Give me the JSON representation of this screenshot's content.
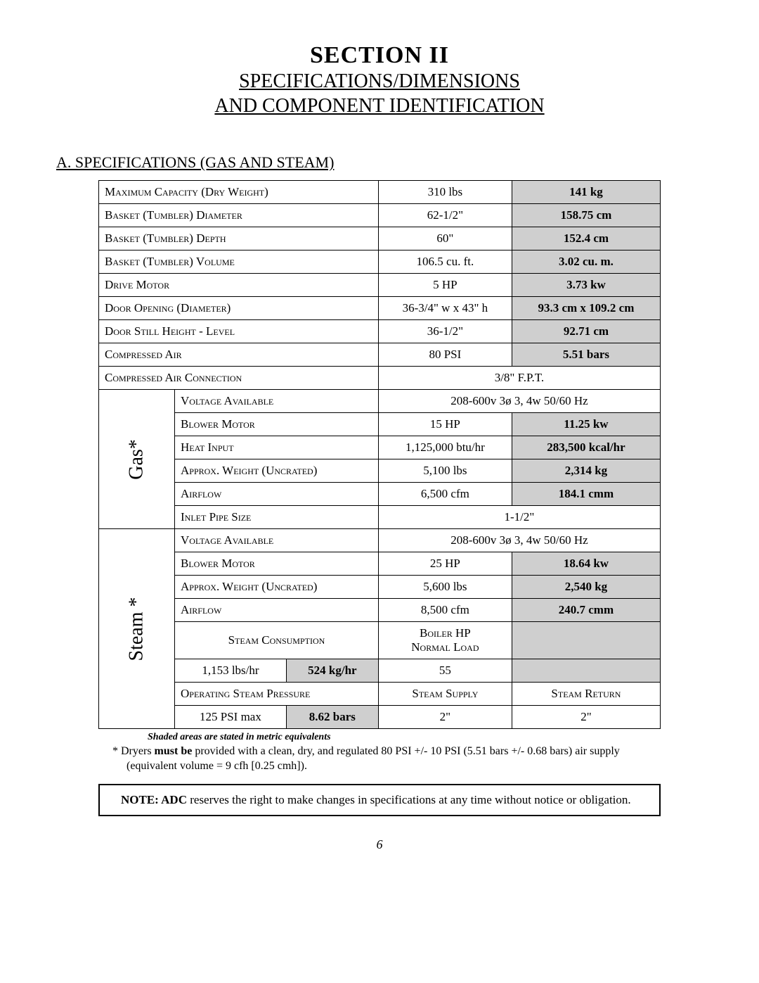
{
  "title": "SECTION II",
  "subtitle_line1": "SPECIFICATIONS/DIMENSIONS",
  "subtitle_line2": "AND COMPONENT IDENTIFICATION",
  "subsection": "A.  SPECIFICATIONS (GAS AND STEAM)",
  "common_rows": [
    {
      "label": "Maximum Capacity (Dry Weight)",
      "us": "310 lbs",
      "metric": "141 kg"
    },
    {
      "label": "Basket (Tumbler) Diameter",
      "us": "62-1/2\"",
      "metric": "158.75 cm"
    },
    {
      "label": "Basket (Tumbler) Depth",
      "us": "60\"",
      "metric": "152.4 cm"
    },
    {
      "label": "Basket (Tumbler) Volume",
      "us": "106.5 cu. ft.",
      "metric": "3.02 cu. m."
    },
    {
      "label": "Drive Motor",
      "us": "5 HP",
      "metric": "3.73 kw"
    },
    {
      "label": "Door Opening (Diameter)",
      "us": "36-3/4\" w x 43\" h",
      "metric": "93.3 cm x 109.2 cm"
    },
    {
      "label": "Door Still Height - Level",
      "us": "36-1/2\"",
      "metric": "92.71 cm"
    },
    {
      "label": "Compressed Air",
      "us": "80 PSI",
      "metric": "5.51 bars"
    }
  ],
  "compressed_air_conn": {
    "label": "Compressed Air Connection",
    "val": "3/8\" F.P.T."
  },
  "gas": {
    "header": "Gas*",
    "voltage": {
      "label": "Voltage Available",
      "val": "208-600v  3ø  3, 4w 50/60 Hz"
    },
    "rows": [
      {
        "label": "Blower Motor",
        "us": "15 HP",
        "metric": "11.25 kw"
      },
      {
        "label": "Heat Input",
        "us": "1,125,000 btu/hr",
        "metric": "283,500 kcal/hr"
      },
      {
        "label": "Approx. Weight (Uncrated)",
        "us": "5,100 lbs",
        "metric": "2,314 kg"
      },
      {
        "label": "Airflow",
        "us": "6,500 cfm",
        "metric": "184.1 cmm"
      }
    ],
    "inlet": {
      "label": "Inlet Pipe Size",
      "val": "1-1/2\""
    }
  },
  "steam": {
    "header": "Steam *",
    "voltage": {
      "label": "Voltage Available",
      "val": "208-600v  3ø  3, 4w 50/60 Hz"
    },
    "rows": [
      {
        "label": "Blower Motor",
        "us": "25 HP",
        "metric": "18.64 kw"
      },
      {
        "label": "Approx. Weight (Uncrated)",
        "us": "5,600 lbs",
        "metric": "2,540 kg"
      },
      {
        "label": "Airflow",
        "us": "8,500 cfm",
        "metric": "240.7 cmm"
      }
    ],
    "consumption_label": "Steam Consumption",
    "boiler_label_l1": "Boiler HP",
    "boiler_label_l2": "Normal Load",
    "lbs": "1,153 lbs/hr",
    "kg": "524 kg/hr",
    "boiler_val": "55",
    "op_label": "Operating Steam Pressure",
    "supply": "Steam Supply",
    "return": "Steam Return",
    "psi": "125 PSI max",
    "bars": "8.62 bars",
    "supply_val": "2\"",
    "return_val": "2\""
  },
  "shaded_note": "Shaded areas are stated in metric equivalents",
  "foot_prefix": "*  Dryers ",
  "foot_bold": "must be",
  "foot_rest": " provided with a clean, dry, and regulated 80 PSI +/- 10 PSI (5.51 bars +/- 0.68 bars) air supply (equivalent volume = 9 cfh [0.25 cmh]).",
  "note_bold": "NOTE:  ADC",
  "note_rest": " reserves the right to make changes in specifications at any time without notice or obligation.",
  "page": "6"
}
